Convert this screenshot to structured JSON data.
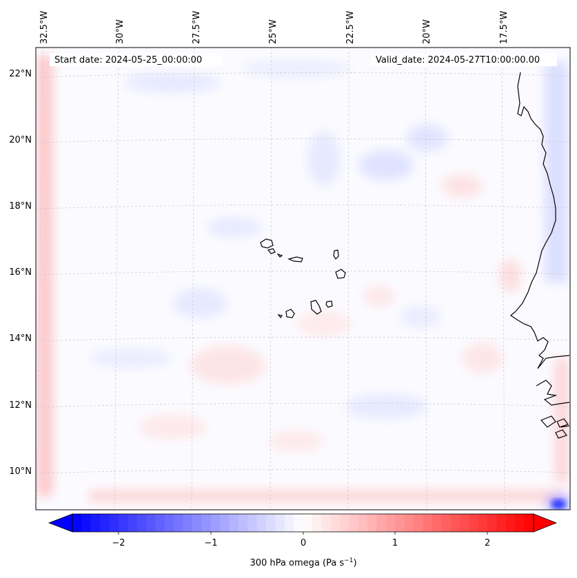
{
  "map": {
    "annotations": {
      "start": "Start date: 2024-05-25_00:00:00",
      "valid": "Valid_date: 2024-05-27T10:00:00.00"
    },
    "lon_labels": [
      "32.5°W",
      "30°W",
      "27.5°W",
      "25°W",
      "22.5°W",
      "20°W",
      "17.5°W"
    ],
    "lat_labels": [
      "22°N",
      "20°N",
      "18°N",
      "16°N",
      "14°N",
      "12°N",
      "10°N"
    ],
    "colors": {
      "negative": "#0000ff",
      "neutral": "#ffffff",
      "positive": "#ff0000",
      "coast": "#000000",
      "grid": "#b0b0b0"
    }
  },
  "colorbar": {
    "ticks": [
      "−2",
      "−1",
      "0",
      "1",
      "2"
    ],
    "label_main": "300 hPa omega (Pa s",
    "label_sup": "−1",
    "label_close": ")"
  }
}
